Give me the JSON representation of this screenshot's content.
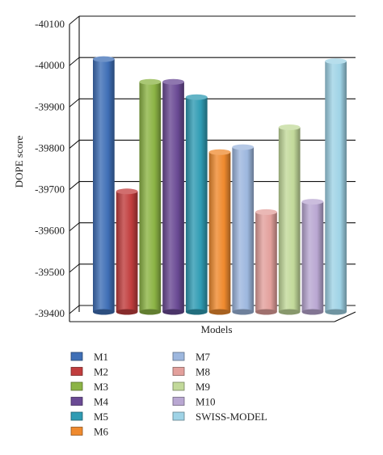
{
  "chart_data": {
    "type": "bar",
    "style": "3d-cylinder",
    "xlabel": "Models",
    "ylabel": "DOPE score",
    "ylim": [
      -40100,
      -39400
    ],
    "yticks": [
      -40100,
      -40000,
      -39900,
      -39800,
      -39700,
      -39600,
      -39500,
      -39400
    ],
    "y_axis_inverted": true,
    "grid": true,
    "legend_position": "bottom",
    "series": [
      {
        "name": "M1",
        "value": -40000,
        "color": "#3f6fb6"
      },
      {
        "name": "M2",
        "value": -39680,
        "color": "#c13d3d"
      },
      {
        "name": "M3",
        "value": -39945,
        "color": "#8cb445"
      },
      {
        "name": "M4",
        "value": -39945,
        "color": "#6a4a94"
      },
      {
        "name": "M5",
        "value": -39908,
        "color": "#2f9bb3"
      },
      {
        "name": "M6",
        "value": -39775,
        "color": "#ef8a2e"
      },
      {
        "name": "M7",
        "value": -39787,
        "color": "#9db7de"
      },
      {
        "name": "M8",
        "value": -39630,
        "color": "#e3a09c"
      },
      {
        "name": "M9",
        "value": -39835,
        "color": "#c2d99a"
      },
      {
        "name": "M10",
        "value": -39655,
        "color": "#b9a7d2"
      },
      {
        "name": "SWISS-MODEL",
        "value": -39995,
        "color": "#9fd3e6"
      }
    ]
  }
}
